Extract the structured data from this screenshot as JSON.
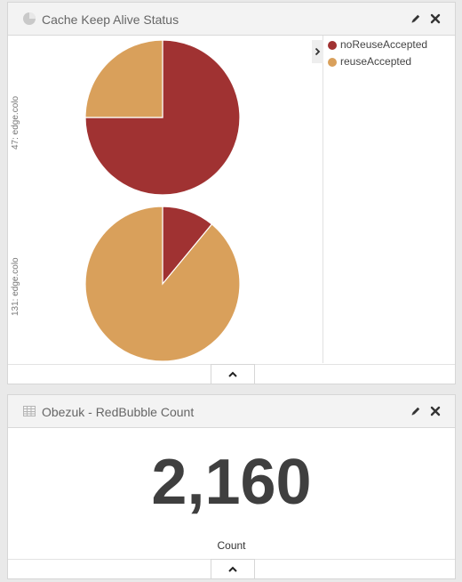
{
  "panels": [
    {
      "title": "Cache Keep Alive Status",
      "icon": "pie-chart-icon",
      "actions": [
        "pencil-icon",
        "close-icon"
      ]
    },
    {
      "title": "Obezuk - RedBubble Count",
      "icon": "table-icon",
      "actions": [
        "pencil-icon",
        "close-icon"
      ],
      "metric": {
        "value": "2,160",
        "label": "Count"
      }
    }
  ],
  "chart_data": {
    "type": "pie",
    "legend_position": "right",
    "colors": {
      "noReuseAccepted": "#a03232",
      "reuseAccepted": "#d9a05b"
    },
    "legend": [
      "noReuseAccepted",
      "reuseAccepted"
    ],
    "rows": [
      {
        "label": "47: edge.colo",
        "slices": [
          {
            "name": "noReuseAccepted",
            "value": 75
          },
          {
            "name": "reuseAccepted",
            "value": 25
          }
        ]
      },
      {
        "label": "131: edge.colo",
        "slices": [
          {
            "name": "noReuseAccepted",
            "value": 11
          },
          {
            "name": "reuseAccepted",
            "value": 89
          }
        ]
      }
    ]
  }
}
